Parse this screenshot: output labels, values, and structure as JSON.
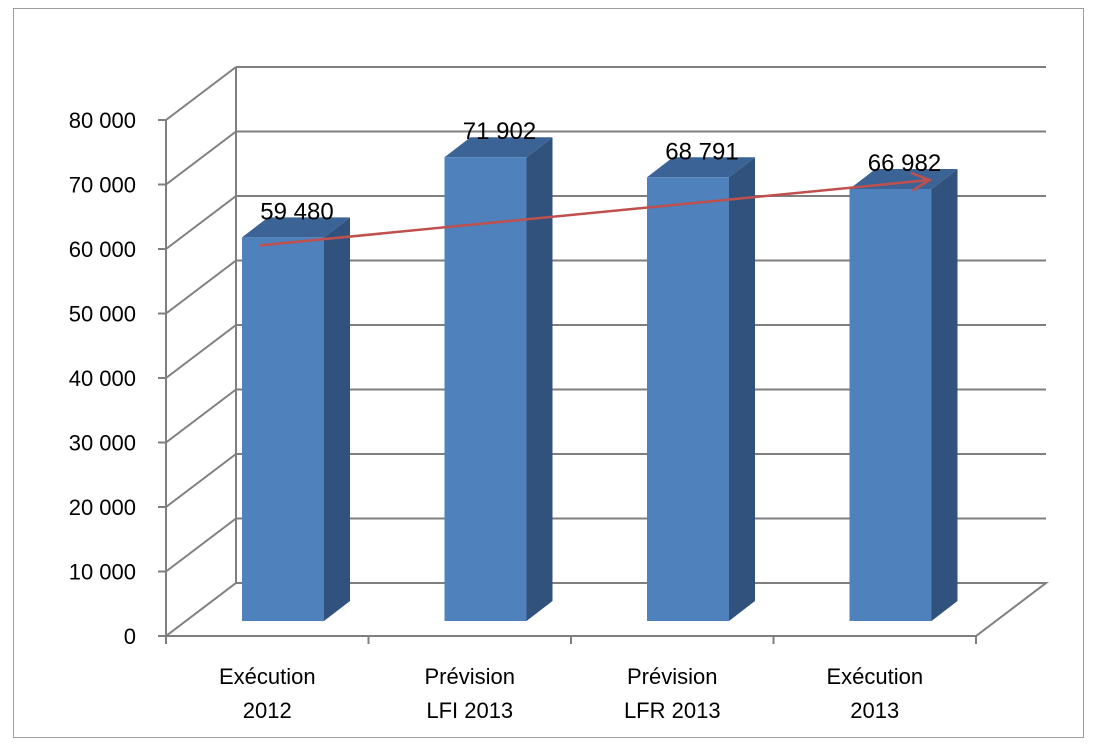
{
  "chart_data": {
    "type": "bar",
    "style": "3d-column",
    "categories": [
      [
        "Exécution",
        "2012"
      ],
      [
        "Prévision",
        "LFI 2013"
      ],
      [
        "Prévision",
        "LFR 2013"
      ],
      [
        "Exécution",
        "2013"
      ]
    ],
    "values": [
      59480,
      71902,
      68791,
      66982
    ],
    "data_labels": [
      "59 480",
      "71 902",
      "68 791",
      "66 982"
    ],
    "yticks": [
      "0",
      "10 000",
      "20 000",
      "30 000",
      "40 000",
      "50 000",
      "60 000",
      "70 000",
      "80 000"
    ],
    "ylim": [
      0,
      80000
    ],
    "grid": true,
    "legend": "none",
    "trend_arrow": {
      "from_category": 0,
      "to_category": 3
    },
    "colors": {
      "bar_front": "#4f81bd",
      "bar_side": "#30527c",
      "bar_top": "#3c6395",
      "grid": "#7f7f7f",
      "arrow": "#c0504d"
    }
  }
}
